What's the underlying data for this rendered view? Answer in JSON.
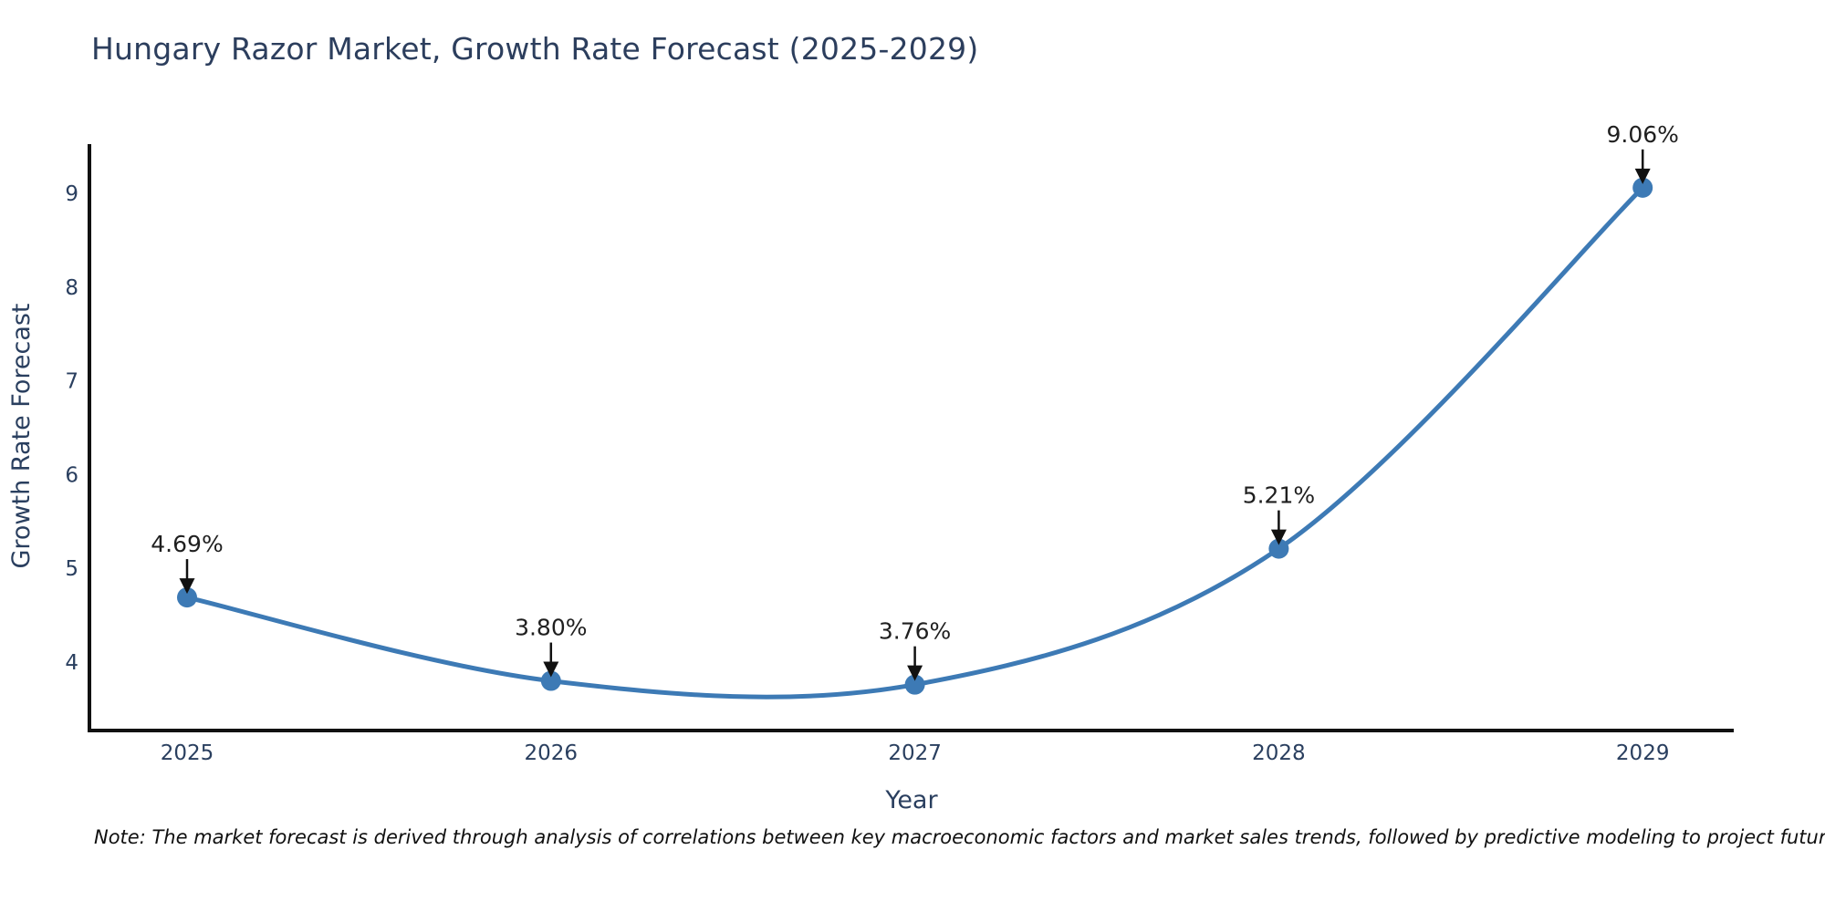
{
  "title": "Hungary Razor Market, Growth Rate Forecast (2025-2029)",
  "note": "Note: The market forecast is derived through analysis of correlations between key macroeconomic factors and market sales trends, followed by predictive modeling to project future sales.",
  "chart_data": {
    "type": "line",
    "title": "Hungary Razor Market, Growth Rate Forecast (2025-2029)",
    "xlabel": "Year",
    "ylabel": "Growth Rate Forecast",
    "x": [
      2025,
      2026,
      2027,
      2028,
      2029
    ],
    "series": [
      {
        "name": "Growth Rate Forecast",
        "values": [
          4.69,
          3.8,
          3.76,
          5.21,
          9.06
        ]
      }
    ],
    "point_labels": [
      "4.69%",
      "3.80%",
      "3.76%",
      "5.21%",
      "9.06%"
    ],
    "xtick_labels": [
      "2025",
      "2026",
      "2027",
      "2028",
      "2029"
    ],
    "yticks": [
      4,
      5,
      6,
      7,
      8,
      9
    ],
    "ylim": [
      3.3,
      9.65
    ],
    "line_shape": "spline",
    "grid": false,
    "legend": "none",
    "colors": {
      "line": "#3d7ab5",
      "marker": "#3d7ab5",
      "axis": "#111111",
      "tick_text": "#2a3f5f",
      "axis_title_text": "#2a3f5f",
      "annotation_text": "#1f1f1f",
      "arrow": "#111111",
      "background": "#ffffff"
    }
  }
}
